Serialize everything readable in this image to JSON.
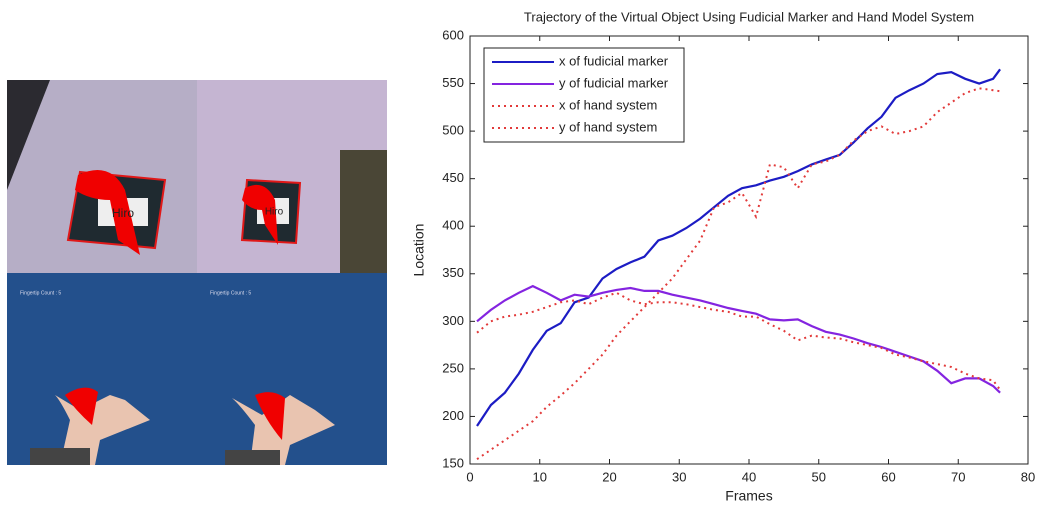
{
  "image_panel": {
    "marker_labels": [
      "Hiro",
      "Hiro"
    ],
    "overlay_labels": [
      "Fingertip Count : 5",
      "Fingertip Count : 5"
    ]
  },
  "chart_data": {
    "type": "line",
    "title": "Trajectory of the Virtual Object Using Fudicial Marker and Hand Model System",
    "x_label": "Frames",
    "y_label": "Location",
    "x": [
      1,
      3,
      5,
      7,
      9,
      11,
      13,
      15,
      17,
      19,
      21,
      23,
      25,
      27,
      29,
      31,
      33,
      35,
      37,
      39,
      41,
      43,
      45,
      47,
      49,
      51,
      53,
      55,
      57,
      59,
      61,
      63,
      65,
      67,
      69,
      71,
      73,
      75,
      76
    ],
    "series": [
      {
        "name": "x of fudicial marker",
        "color": "#1c1cc4",
        "style": "solid",
        "values": [
          190,
          212,
          225,
          245,
          270,
          290,
          298,
          320,
          325,
          345,
          355,
          362,
          368,
          385,
          390,
          398,
          408,
          420,
          432,
          440,
          443,
          448,
          452,
          458,
          465,
          470,
          475,
          488,
          503,
          515,
          535,
          543,
          550,
          560,
          562,
          555,
          550,
          555,
          565
        ]
      },
      {
        "name": "y of fudicial marker",
        "color": "#8424e0",
        "style": "solid",
        "values": [
          300,
          312,
          322,
          330,
          337,
          330,
          322,
          328,
          326,
          330,
          333,
          335,
          332,
          332,
          328,
          325,
          322,
          318,
          314,
          311,
          308,
          302,
          301,
          302,
          295,
          289,
          286,
          282,
          277,
          273,
          268,
          263,
          258,
          248,
          235,
          240,
          240,
          232,
          225
        ]
      },
      {
        "name": "x of hand system",
        "color": "#e23a3a",
        "style": "dotted",
        "values": [
          155,
          165,
          175,
          185,
          195,
          210,
          222,
          235,
          250,
          265,
          285,
          300,
          315,
          330,
          345,
          365,
          385,
          420,
          425,
          435,
          410,
          465,
          462,
          440,
          465,
          468,
          475,
          490,
          500,
          505,
          497,
          500,
          505,
          520,
          530,
          540,
          545,
          543,
          542
        ]
      },
      {
        "name": "y of hand system",
        "color": "#e23a3a",
        "style": "dotted",
        "values": [
          288,
          300,
          305,
          307,
          310,
          315,
          320,
          322,
          318,
          325,
          330,
          322,
          318,
          320,
          320,
          318,
          315,
          312,
          310,
          305,
          305,
          297,
          290,
          280,
          285,
          283,
          282,
          278,
          275,
          272,
          265,
          262,
          258,
          255,
          252,
          245,
          240,
          238,
          228
        ]
      }
    ],
    "xlim": [
      0,
      80
    ],
    "xticks": [
      0,
      10,
      20,
      30,
      40,
      50,
      60,
      70,
      80
    ],
    "ylim": [
      150,
      600
    ],
    "yticks": [
      150,
      200,
      250,
      300,
      350,
      400,
      450,
      500,
      550,
      600
    ],
    "legend": "upper left",
    "grid": false
  }
}
